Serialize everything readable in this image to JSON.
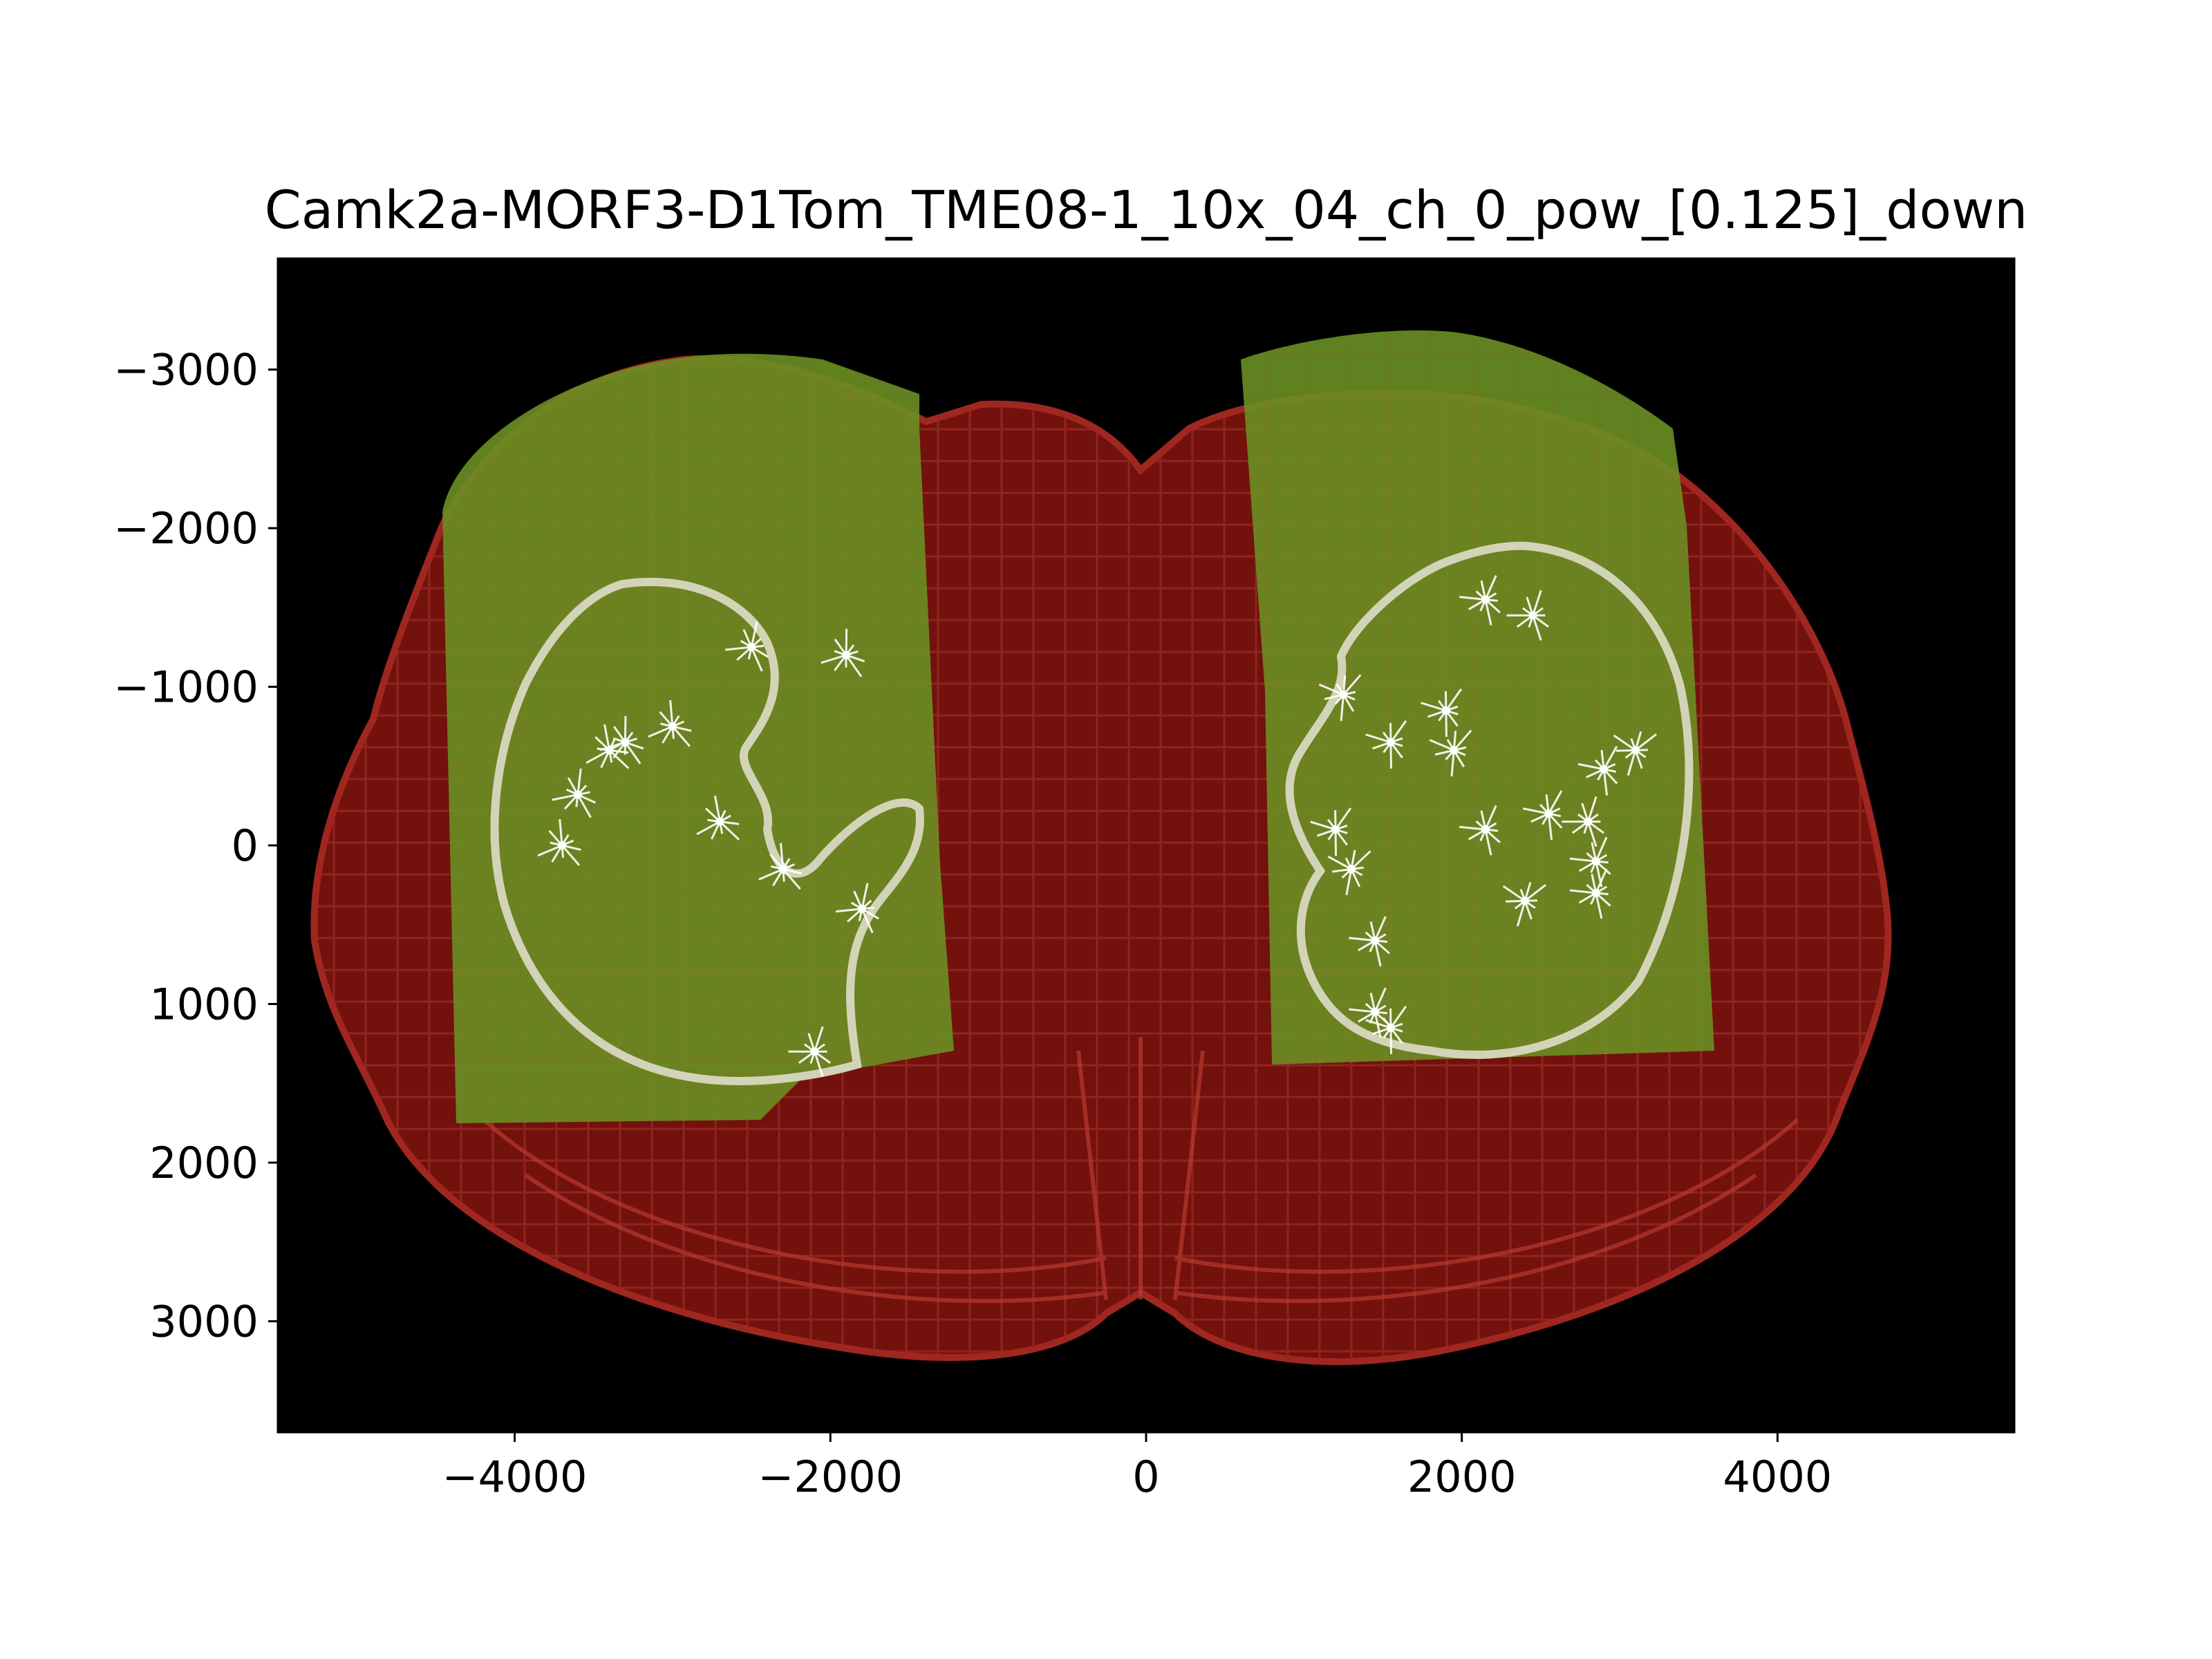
{
  "figure": {
    "title": "Camk2a-MORF3-D1Tom_TME08-1_10x_04_ch_0_pow_[0.125]_down",
    "background_color": "#000000",
    "overlay_colors": {
      "atlas_red": "#8a1410",
      "tissue_green": "#6f9a22",
      "region_outline": "#d8d8c0",
      "neurons": "#ffffff"
    }
  },
  "axes": {
    "xlim": [
      -5500,
      5500
    ],
    "ylim": [
      3700,
      -3700
    ],
    "x_ticks": [
      {
        "value": -4000,
        "label": "−4000"
      },
      {
        "value": -2000,
        "label": "−2000"
      },
      {
        "value": 0,
        "label": "0"
      },
      {
        "value": 2000,
        "label": "2000"
      },
      {
        "value": 4000,
        "label": "4000"
      }
    ],
    "y_ticks": [
      {
        "value": -3000,
        "label": "−3000"
      },
      {
        "value": -2000,
        "label": "−2000"
      },
      {
        "value": -1000,
        "label": "−1000"
      },
      {
        "value": 0,
        "label": "0"
      },
      {
        "value": 1000,
        "label": "1000"
      },
      {
        "value": 2000,
        "label": "2000"
      },
      {
        "value": 3000,
        "label": "3000"
      }
    ]
  },
  "neurons": [
    [
      -2500,
      -1250
    ],
    [
      -1900,
      -1200
    ],
    [
      -3000,
      -750
    ],
    [
      -3400,
      -600
    ],
    [
      -3300,
      -650
    ],
    [
      -2300,
      150
    ],
    [
      -3700,
      0
    ],
    [
      -3600,
      -320
    ],
    [
      -2700,
      -150
    ],
    [
      -1800,
      400
    ],
    [
      -2100,
      1300
    ],
    [
      2150,
      -1550
    ],
    [
      2450,
      -1450
    ],
    [
      1250,
      -950
    ],
    [
      1900,
      -850
    ],
    [
      1950,
      -600
    ],
    [
      1550,
      -650
    ],
    [
      2900,
      -480
    ],
    [
      3100,
      -600
    ],
    [
      2850,
      100
    ],
    [
      2150,
      -100
    ],
    [
      2550,
      -200
    ],
    [
      2400,
      350
    ],
    [
      2800,
      -150
    ],
    [
      2850,
      300
    ],
    [
      1200,
      -100
    ],
    [
      1300,
      150
    ],
    [
      1450,
      600
    ],
    [
      1450,
      1050
    ],
    [
      1550,
      1150
    ]
  ]
}
